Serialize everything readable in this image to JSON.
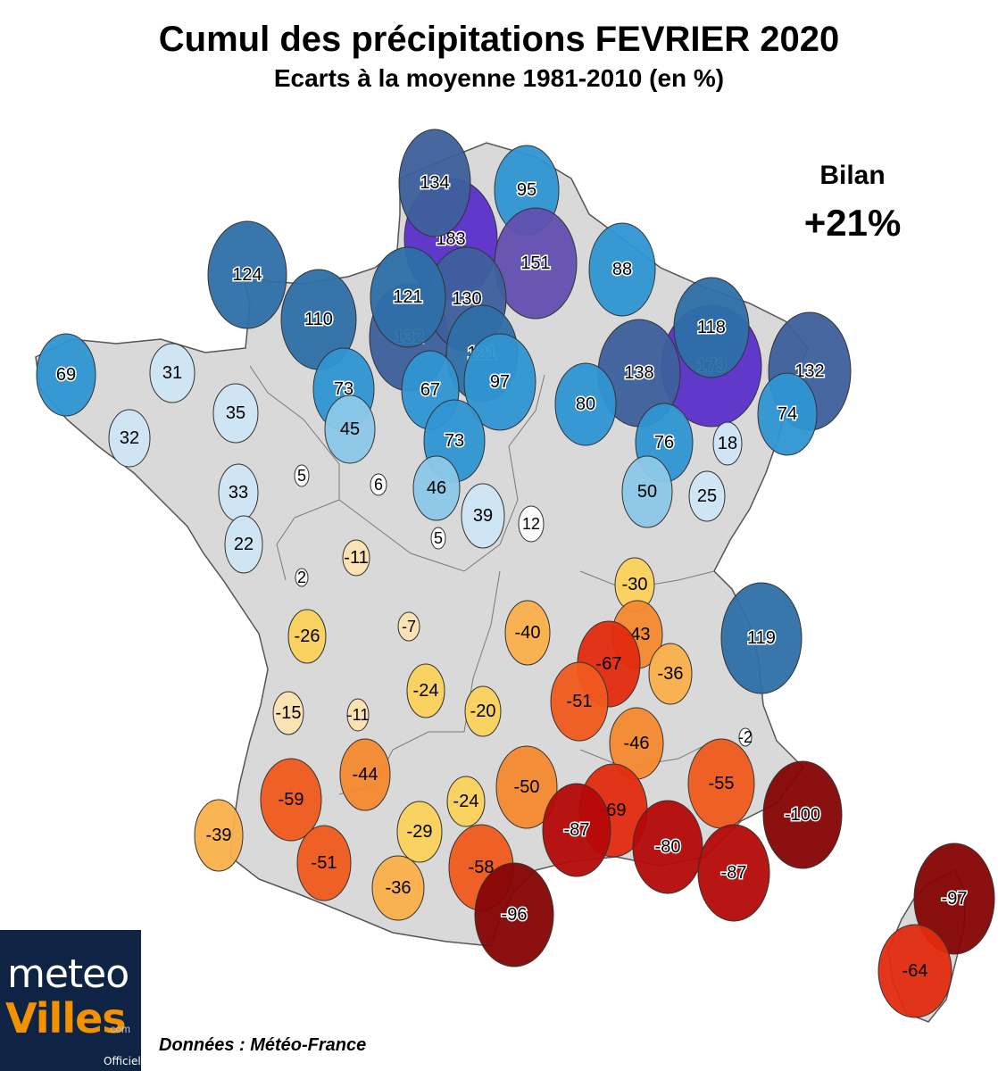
{
  "header": {
    "title": "Cumul des précipitations FEVRIER 2020",
    "subtitle": "Ecarts à la moyenne 1981-2010 (en %)"
  },
  "summary": {
    "label": "Bilan",
    "value": "+21%"
  },
  "source": "Données : Météo-France",
  "logo": {
    "line1": "meteo",
    "line2": "Villes",
    "domain": ".com",
    "tag": "Officiel"
  },
  "colors": {
    "land": "#d9d9d9",
    "border": "#555555",
    "very_wet": "#5a2fc9",
    "wet_strong": "#3d5f9c",
    "wet": "#2e6fa8",
    "wet_mid": "#2f95d2",
    "wet_light": "#8cc8e8",
    "wet_pale": "#cfe6f4",
    "neutral": "#ffffff",
    "dry_pale": "#fde3b0",
    "dry_light": "#fcd25b",
    "dry_mid": "#fbb04a",
    "dry": "#f6892e",
    "dry_strong": "#f05a1c",
    "dry_red": "#e32b0e",
    "very_dry": "#b40808",
    "extreme_dry": "#850404"
  },
  "stations": [
    {
      "value": "183"
    },
    {
      "value": "134"
    },
    {
      "value": "95"
    },
    {
      "value": "151"
    },
    {
      "value": "124"
    },
    {
      "value": "88"
    },
    {
      "value": "110"
    },
    {
      "value": "132"
    },
    {
      "value": "130"
    },
    {
      "value": "121"
    },
    {
      "value": "121"
    },
    {
      "value": "97"
    },
    {
      "value": "179"
    },
    {
      "value": "138"
    },
    {
      "value": "118"
    },
    {
      "value": "132"
    },
    {
      "value": "69"
    },
    {
      "value": "31"
    },
    {
      "value": "73"
    },
    {
      "value": "67"
    },
    {
      "value": "80"
    },
    {
      "value": "74"
    },
    {
      "value": "35"
    },
    {
      "value": "45"
    },
    {
      "value": "73"
    },
    {
      "value": "76"
    },
    {
      "value": "18"
    },
    {
      "value": "32"
    },
    {
      "value": "5"
    },
    {
      "value": "6"
    },
    {
      "value": "46"
    },
    {
      "value": "50"
    },
    {
      "value": "25"
    },
    {
      "value": "33"
    },
    {
      "value": "39"
    },
    {
      "value": "12"
    },
    {
      "value": "5"
    },
    {
      "value": "22"
    },
    {
      "value": "-11"
    },
    {
      "value": "2"
    },
    {
      "value": "-30"
    },
    {
      "value": "119"
    },
    {
      "value": "-26"
    },
    {
      "value": "-7"
    },
    {
      "value": "-40"
    },
    {
      "value": "-43"
    },
    {
      "value": "-67"
    },
    {
      "value": "-36"
    },
    {
      "value": "-24"
    },
    {
      "value": "-51"
    },
    {
      "value": "-15"
    },
    {
      "value": "-11"
    },
    {
      "value": "-20"
    },
    {
      "value": "-46"
    },
    {
      "value": "-2"
    },
    {
      "value": "-44"
    },
    {
      "value": "-55"
    },
    {
      "value": "-59"
    },
    {
      "value": "-50"
    },
    {
      "value": "-24"
    },
    {
      "value": "-69"
    },
    {
      "value": "-100"
    },
    {
      "value": "-87"
    },
    {
      "value": "-39"
    },
    {
      "value": "-29"
    },
    {
      "value": "-80"
    },
    {
      "value": "-51"
    },
    {
      "value": "-58"
    },
    {
      "value": "-87"
    },
    {
      "value": "-36"
    },
    {
      "value": "-97"
    },
    {
      "value": "-96"
    },
    {
      "value": "-64"
    }
  ]
}
